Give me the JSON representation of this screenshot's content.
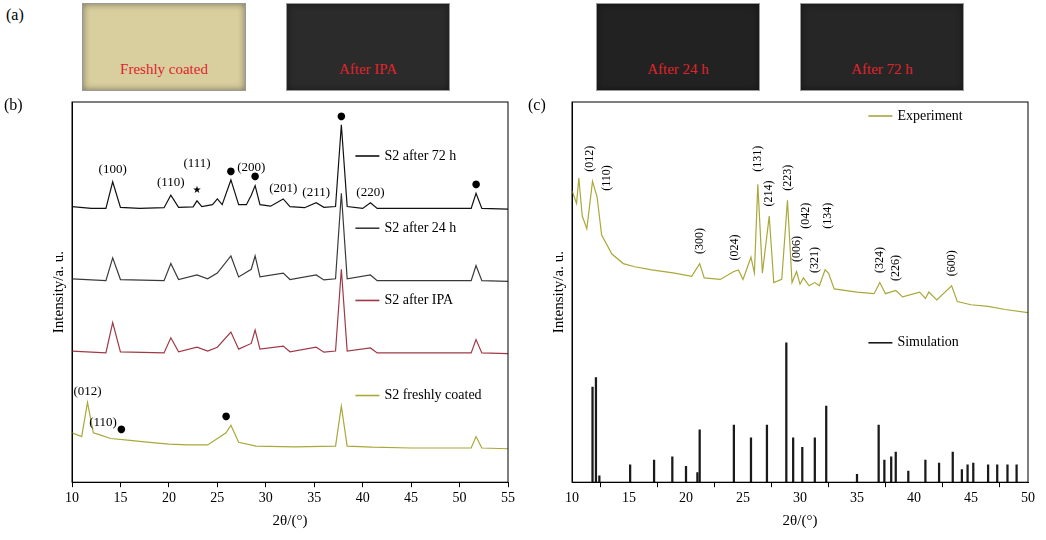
{
  "panel_a": {
    "label": "(a)",
    "photos": [
      {
        "caption": "Freshly coated",
        "color": "#d8ce9e"
      },
      {
        "caption": "After IPA",
        "color": "#2b2b2b"
      },
      {
        "caption": "After 24 h",
        "color": "#222222"
      },
      {
        "caption": "After 72 h",
        "color": "#262626"
      }
    ]
  },
  "chart_data": [
    {
      "type": "line",
      "panel": "(b)",
      "x_label": "2θ/(°)",
      "y_label": "Intensity/a. u.",
      "xlim": [
        10,
        55
      ],
      "xticks": [
        10,
        15,
        20,
        25,
        30,
        35,
        40,
        45,
        50,
        55
      ],
      "ylim": [
        0,
        100
      ],
      "tick_labels": "x",
      "grid": false,
      "legend": "right",
      "series": [
        {
          "name": "S2 after 72 h",
          "color": "#111111",
          "x": [
            10,
            12,
            13.5,
            14.2,
            15,
            17,
            19.5,
            20.2,
            21,
            22.5,
            22.9,
            23.4,
            24.5,
            25,
            25.5,
            26.4,
            27.2,
            28,
            28.5,
            28.9,
            29.4,
            30.5,
            31.8,
            32.5,
            34,
            35.2,
            36,
            37.2,
            37.8,
            38.4,
            40,
            40.8,
            41.5,
            45,
            48,
            51.2,
            51.7,
            52.3,
            55
          ],
          "values": [
            72.5,
            72,
            72,
            79,
            72.3,
            72,
            72.2,
            75.5,
            72.3,
            72.4,
            74,
            72.5,
            73,
            74.5,
            73,
            79.5,
            73,
            73,
            75.5,
            78,
            73,
            72.6,
            74.5,
            72.5,
            72.2,
            73.5,
            72.3,
            72.5,
            94,
            72.5,
            72,
            73.5,
            72,
            72,
            72,
            72,
            76,
            72,
            71.8
          ]
        },
        {
          "name": "S2 after 24 h",
          "color": "#3a3a3a",
          "x": [
            10,
            13.5,
            14.2,
            15,
            19.5,
            20.2,
            21,
            22.9,
            24,
            25,
            26.4,
            27.2,
            28.5,
            28.9,
            29.4,
            31.8,
            32.5,
            35.2,
            36,
            37.2,
            37.8,
            38.4,
            40.8,
            41.5,
            46,
            51.2,
            51.7,
            52.3,
            55
          ],
          "values": [
            53.5,
            53,
            59,
            53.3,
            53,
            57.5,
            53.3,
            54.5,
            53.5,
            55,
            59.5,
            54,
            56,
            59.5,
            54,
            55,
            53.3,
            54.5,
            53.2,
            53.5,
            76,
            53.5,
            54.5,
            53,
            53,
            53,
            57,
            53,
            52.8
          ]
        },
        {
          "name": "S2 after IPA",
          "color": "#9e3a46",
          "x": [
            10,
            13.5,
            14.2,
            15,
            19.5,
            20.2,
            21,
            22.9,
            24,
            25,
            26.4,
            27.2,
            28.5,
            28.9,
            29.4,
            31.8,
            32.5,
            35.2,
            36,
            37.2,
            37.8,
            38.4,
            40.8,
            41.5,
            46,
            51.2,
            51.7,
            52.3,
            55
          ],
          "values": [
            34.5,
            34,
            42,
            34.3,
            34,
            38,
            34.3,
            35.5,
            34.5,
            35.5,
            39.5,
            35,
            36.5,
            40,
            35,
            35.8,
            34.3,
            35.5,
            34.2,
            34.5,
            56,
            34.5,
            35.3,
            34,
            34,
            34,
            37.5,
            34,
            33.8
          ]
        },
        {
          "name": "S2 freshly coated",
          "color": "#a9a83a",
          "x": [
            10,
            11,
            11.6,
            12.2,
            12.8,
            14,
            16,
            18,
            20,
            22,
            24,
            25.9,
            26.4,
            27.2,
            29,
            33,
            37.2,
            37.8,
            38.4,
            41,
            45,
            51.2,
            51.7,
            52.3,
            55
          ],
          "values": [
            13,
            12,
            21,
            13,
            12.5,
            11.5,
            11,
            10.5,
            10,
            9.8,
            9.8,
            13,
            15,
            10.5,
            9.5,
            9.3,
            9.5,
            20,
            9.5,
            9.2,
            9,
            9,
            12,
            9,
            8.8
          ]
        }
      ],
      "annotations": [
        {
          "text": "(100)",
          "x": 14.2,
          "y": 80.5
        },
        {
          "text": "(110)",
          "x": 20.2,
          "y": 77
        },
        {
          "text": "★",
          "x": 22.9,
          "y": 75.5
        },
        {
          "text": "(111)",
          "x": 22.9,
          "y": 82
        },
        {
          "text": "●",
          "x": 26.4,
          "y": 80.5
        },
        {
          "text": "(200)",
          "x": 28.5,
          "y": 81
        },
        {
          "text": "●",
          "x": 28.9,
          "y": 79
        },
        {
          "text": "(201)",
          "x": 31.8,
          "y": 75.5
        },
        {
          "text": "(211)",
          "x": 35.2,
          "y": 74.5
        },
        {
          "text": "●",
          "x": 37.8,
          "y": 95
        },
        {
          "text": "(220)",
          "x": 40.8,
          "y": 74.5
        },
        {
          "text": "●",
          "x": 51.7,
          "y": 77
        },
        {
          "text": "(012)",
          "x": 11.6,
          "y": 22
        },
        {
          "text": "(110)",
          "x": 13.2,
          "y": 14
        },
        {
          "text": "●",
          "x": 15.1,
          "y": 12.5
        },
        {
          "text": "●",
          "x": 25.9,
          "y": 16
        }
      ]
    },
    {
      "type": "line",
      "panel": "(c)",
      "x_label": "2θ/(°)",
      "y_label": "Intensity/a. u.",
      "xlim": [
        10,
        50
      ],
      "xticks": [
        10,
        15,
        20,
        25,
        30,
        35,
        40,
        45,
        50
      ],
      "ylim": [
        0,
        120
      ],
      "tick_labels": "x",
      "grid": false,
      "legend": "right",
      "series": [
        {
          "name": "Experiment",
          "color": "#a9a83a",
          "type": "line",
          "x": [
            10,
            10.4,
            10.6,
            10.9,
            11.3,
            11.8,
            12.2,
            12.6,
            13.5,
            14.5,
            15.5,
            17,
            19,
            20.5,
            21.2,
            21.6,
            23,
            24.2,
            24.6,
            25,
            25.7,
            26,
            26.3,
            26.7,
            27.3,
            27.7,
            28.4,
            28.9,
            29.3,
            29.7,
            30,
            30.3,
            30.8,
            31.3,
            31.7,
            32.2,
            32.5,
            33,
            35,
            36.5,
            37,
            37.5,
            38.4,
            39,
            40.5,
            41,
            41.3,
            42,
            43.3,
            43.8,
            45,
            46.5,
            48,
            50
          ],
          "values": [
            92,
            88,
            96,
            84,
            80,
            95,
            90,
            78,
            72,
            69,
            68,
            67,
            66,
            65,
            69,
            64.5,
            64,
            66.5,
            67,
            64,
            71,
            66,
            94,
            66,
            84,
            63,
            64,
            89,
            63,
            66.5,
            62.5,
            64.5,
            62,
            63,
            62,
            67,
            66,
            61,
            60,
            59.5,
            63,
            59.5,
            60.5,
            58.5,
            60,
            58,
            60,
            57.5,
            62,
            57,
            56,
            55.5,
            54.5,
            53.5
          ]
        },
        {
          "name": "Simulation",
          "color": "#1a1a1a",
          "type": "bar",
          "x": [
            11.8,
            12.1,
            12.4,
            15.1,
            17.2,
            18.8,
            20,
            21,
            21.2,
            24.2,
            25.7,
            27.1,
            28.8,
            29.4,
            30.2,
            31.3,
            32.3,
            35,
            36.9,
            37.4,
            38,
            38.4,
            39.5,
            41,
            42.2,
            43.4,
            44.2,
            44.7,
            45.2,
            46.5,
            47.3,
            48.2,
            49
          ],
          "values": [
            30,
            33,
            2,
            5.5,
            7,
            8,
            5,
            3,
            16.5,
            18,
            14,
            18,
            44,
            14,
            11,
            14,
            24,
            2.5,
            18,
            7,
            8,
            9.5,
            3.5,
            7,
            6,
            9.5,
            4,
            5.5,
            6,
            5.5,
            5.5,
            5.5,
            5.5
          ]
        }
      ],
      "annotations": [
        {
          "text": "(012)",
          "x": 11.6,
          "y": 98
        },
        {
          "text": "(110)",
          "x": 13.1,
          "y": 92
        },
        {
          "text": "(300)",
          "x": 21.2,
          "y": 72
        },
        {
          "text": "(024)",
          "x": 24.3,
          "y": 70
        },
        {
          "text": "(131)",
          "x": 26.3,
          "y": 98
        },
        {
          "text": "(214)",
          "x": 27.3,
          "y": 87
        },
        {
          "text": "(223)",
          "x": 28.9,
          "y": 92
        },
        {
          "text": "(006)",
          "x": 29.7,
          "y": 69.5
        },
        {
          "text": "(042)",
          "x": 30.5,
          "y": 80
        },
        {
          "text": "(321)",
          "x": 31.3,
          "y": 66
        },
        {
          "text": "(134)",
          "x": 32.4,
          "y": 80
        },
        {
          "text": "(324)",
          "x": 37,
          "y": 66
        },
        {
          "text": "(226)",
          "x": 38.4,
          "y": 63.5
        },
        {
          "text": "(600)",
          "x": 43.3,
          "y": 65
        }
      ]
    }
  ]
}
